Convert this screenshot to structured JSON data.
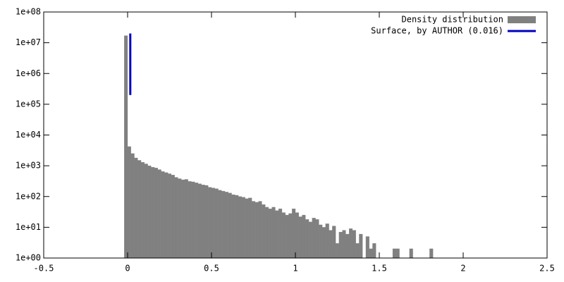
{
  "chart_data": {
    "type": "histogram",
    "log_y": true,
    "xlim": [
      -0.5,
      2.5
    ],
    "ylim": [
      1,
      100000000
    ],
    "xticks": [
      -0.5,
      0,
      0.5,
      1,
      1.5,
      2,
      2.5
    ],
    "yticks": [
      {
        "value": 1,
        "label": "1e+00"
      },
      {
        "value": 10,
        "label": "1e+01"
      },
      {
        "value": 100,
        "label": "1e+02"
      },
      {
        "value": 1000,
        "label": "1e+03"
      },
      {
        "value": 10000,
        "label": "1e+04"
      },
      {
        "value": 100000,
        "label": "1e+05"
      },
      {
        "value": 1000000,
        "label": "1e+06"
      },
      {
        "value": 10000000,
        "label": "1e+07"
      },
      {
        "value": 100000000,
        "label": "1e+08"
      }
    ],
    "legend": "top-right",
    "bins": [
      -0.02,
      0,
      0.02,
      0.04,
      0.06,
      0.08,
      0.1,
      0.12,
      0.14,
      0.16,
      0.18,
      0.2,
      0.22,
      0.24,
      0.26,
      0.28,
      0.3,
      0.32,
      0.34,
      0.36,
      0.38,
      0.4,
      0.42,
      0.44,
      0.46,
      0.48,
      0.5,
      0.52,
      0.54,
      0.56,
      0.58,
      0.6,
      0.62,
      0.64,
      0.66,
      0.68,
      0.7,
      0.72,
      0.74,
      0.76,
      0.78,
      0.8,
      0.82,
      0.84,
      0.86,
      0.88,
      0.9,
      0.92,
      0.94,
      0.96,
      0.98,
      1,
      1.02,
      1.04,
      1.06,
      1.08,
      1.1,
      1.12,
      1.14,
      1.16,
      1.18,
      1.2,
      1.22,
      1.24,
      1.26,
      1.28,
      1.3,
      1.32,
      1.34,
      1.36,
      1.38,
      1.4,
      1.42,
      1.44,
      1.46,
      1.48,
      1.5,
      1.52,
      1.54,
      1.56,
      1.58,
      1.6,
      1.62,
      1.64,
      1.66,
      1.68,
      1.7,
      1.72,
      1.74,
      1.76,
      1.78,
      1.8,
      1.82
    ],
    "series": [
      {
        "name": "Density distribution",
        "color": "#808080",
        "values": [
          17000000,
          4200,
          2500,
          1800,
          1500,
          1300,
          1150,
          1000,
          900,
          850,
          750,
          650,
          600,
          550,
          500,
          420,
          380,
          350,
          360,
          310,
          300,
          280,
          260,
          240,
          230,
          200,
          190,
          180,
          160,
          150,
          140,
          130,
          115,
          110,
          100,
          95,
          85,
          90,
          70,
          65,
          70,
          55,
          45,
          40,
          45,
          35,
          40,
          30,
          25,
          28,
          40,
          30,
          22,
          25,
          18,
          15,
          20,
          18,
          12,
          10,
          13,
          8,
          11,
          3,
          7,
          8,
          6,
          9,
          8,
          3,
          6,
          0,
          5,
          2,
          3,
          1,
          1,
          0,
          0,
          0,
          2,
          2,
          0,
          0,
          0,
          2,
          1,
          0,
          0,
          0,
          0,
          2
        ]
      }
    ],
    "lines": [
      {
        "name": "Surface, by AUTHOR (0.016)",
        "color": "#0000c0",
        "x": 0.016,
        "y": [
          200000,
          20000000
        ]
      }
    ]
  }
}
